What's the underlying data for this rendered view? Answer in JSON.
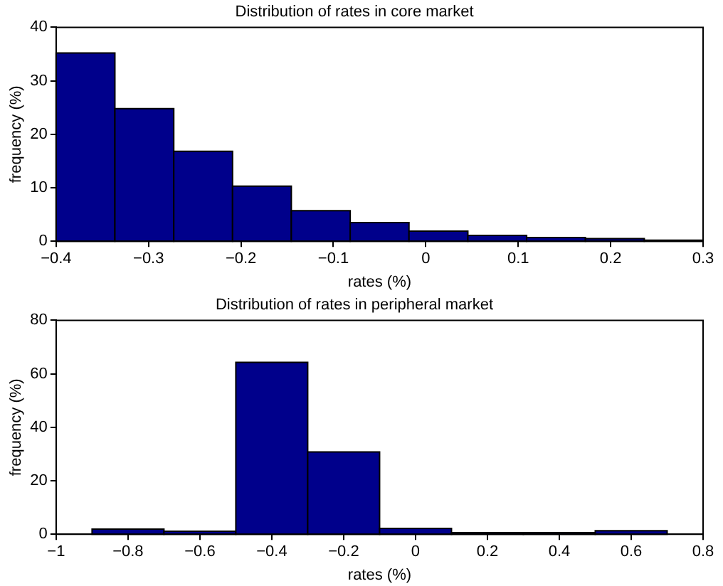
{
  "chart_data": [
    {
      "type": "histogram",
      "title": "Distribution of rates in core market",
      "xlabel": "rates (%)",
      "ylabel": "frequency (%)",
      "color": "#00008b",
      "grid": false,
      "bins": [
        -0.4,
        -0.3364,
        -0.2727,
        -0.2091,
        -0.1455,
        -0.0818,
        -0.0182,
        0.0455,
        0.1091,
        0.1727,
        0.2364,
        0.3
      ],
      "values": [
        35.2,
        24.8,
        16.8,
        10.3,
        5.7,
        3.5,
        1.9,
        1.1,
        0.7,
        0.5,
        0.2
      ],
      "xlim": [
        -0.4,
        0.3
      ],
      "xticks": [
        -0.4,
        -0.3,
        -0.2,
        -0.1,
        0,
        0.1,
        0.2,
        0.3
      ],
      "ylim": [
        0,
        40
      ],
      "yticks": [
        0,
        10,
        20,
        30,
        40
      ]
    },
    {
      "type": "histogram",
      "title": "Distribution of rates in peripheral market",
      "xlabel": "rates (%)",
      "ylabel": "frequency (%)",
      "color": "#00008b",
      "grid": false,
      "bins": [
        -0.9,
        -0.7,
        -0.5,
        -0.3,
        -0.1,
        0.1,
        0.3,
        0.5,
        0.7
      ],
      "values": [
        1.9,
        1.1,
        64.3,
        30.8,
        2.2,
        0.6,
        0.6,
        1.3
      ],
      "xlim": [
        -1,
        0.8
      ],
      "xticks": [
        -1,
        -0.8,
        -0.6,
        -0.4,
        -0.2,
        0,
        0.2,
        0.4,
        0.6,
        0.8
      ],
      "ylim": [
        0,
        80
      ],
      "yticks": [
        0,
        20,
        40,
        60,
        80
      ]
    }
  ]
}
